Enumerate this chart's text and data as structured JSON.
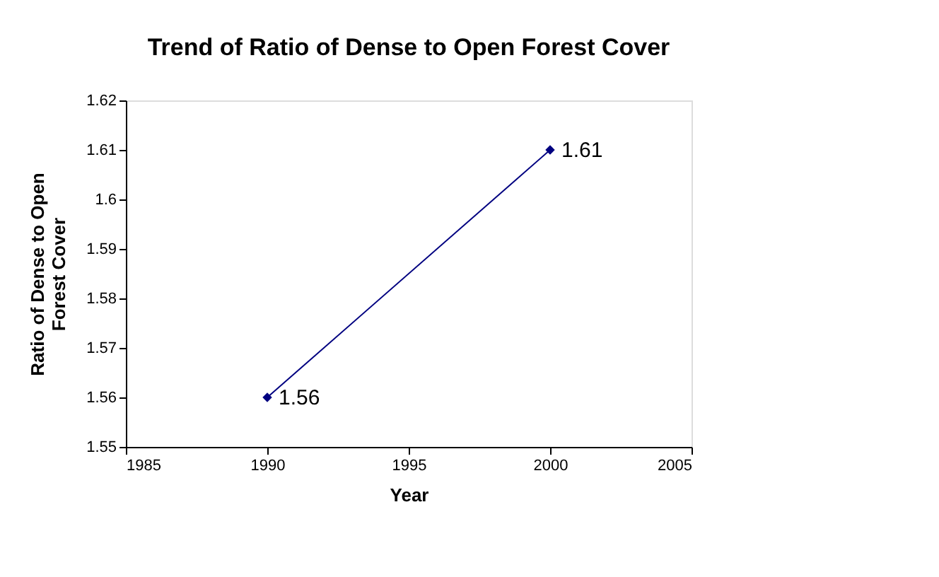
{
  "chart_data": {
    "type": "line",
    "title": "Trend of Ratio of Dense to Open Forest Cover",
    "xlabel": "Year",
    "ylabel": "Ratio of Dense to Open Forest Cover",
    "x": [
      1990,
      2000
    ],
    "series": [
      {
        "color": "#000080",
        "values": [
          1.56,
          1.61
        ]
      }
    ],
    "xlim": [
      1985,
      2005
    ],
    "xticks": [
      1985,
      1990,
      1995,
      2000,
      2005
    ],
    "ylim": [
      1.55,
      1.62
    ],
    "yticks": [
      1.55,
      1.56,
      1.57,
      1.58,
      1.59,
      1.6,
      1.61,
      1.62
    ],
    "grid": false,
    "marker": "diamond",
    "line_style": "solid",
    "data_labels": true
  }
}
